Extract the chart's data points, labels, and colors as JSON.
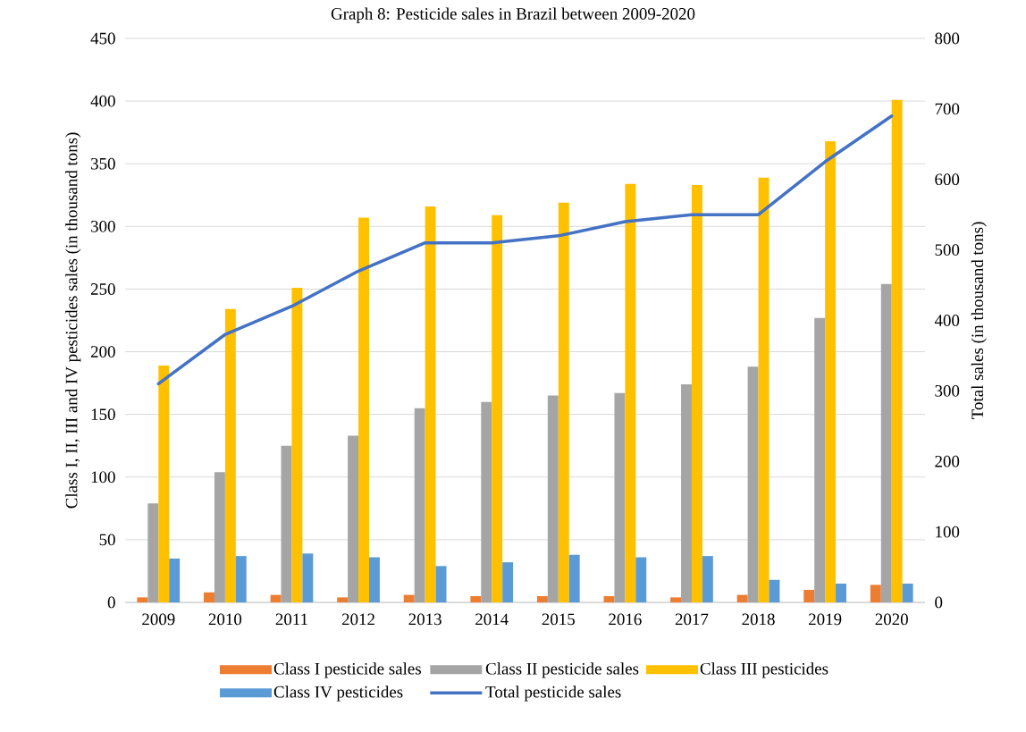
{
  "chart_data": {
    "type": "bar",
    "title": "Graph 8: Pesticide sales in Brazil between 2009-2020",
    "categories": [
      "2009",
      "2010",
      "2011",
      "2012",
      "2013",
      "2014",
      "2015",
      "2016",
      "2017",
      "2018",
      "2019",
      "2020"
    ],
    "series": [
      {
        "name": "Class I pesticide sales",
        "color": "#ed7d31",
        "values": [
          4,
          8,
          6,
          4,
          6,
          5,
          5,
          5,
          4,
          6,
          10,
          14
        ]
      },
      {
        "name": "Class II pesticide sales",
        "color": "#a5a5a5",
        "values": [
          79,
          104,
          125,
          133,
          155,
          160,
          165,
          167,
          174,
          188,
          227,
          254
        ]
      },
      {
        "name": "Class III pesticides",
        "color": "#ffc000",
        "values": [
          189,
          234,
          251,
          307,
          316,
          309,
          319,
          334,
          333,
          339,
          368,
          401
        ]
      },
      {
        "name": "Class IV pesticides",
        "color": "#5b9bd5",
        "values": [
          35,
          37,
          39,
          36,
          29,
          32,
          38,
          36,
          37,
          18,
          15,
          15
        ]
      },
      {
        "name": "Total pesticide sales",
        "color": "#4472c4",
        "type": "line",
        "axis": "y2",
        "values": [
          310,
          380,
          420,
          470,
          510,
          510,
          520,
          540,
          550,
          550,
          625,
          690
        ]
      }
    ],
    "ylabel": "Class I, II, III and IV pesticides sales (in thousand tons)",
    "y2label": "Total sales (in thousand tons)",
    "ylim": [
      0,
      450
    ],
    "yticks": [
      0,
      50,
      100,
      150,
      200,
      250,
      300,
      350,
      400,
      450
    ],
    "y2lim": [
      0,
      800
    ],
    "y2ticks": [
      0,
      100,
      200,
      300,
      400,
      500,
      600,
      700,
      800
    ],
    "grid": "y",
    "legend": "bottom",
    "marker": "none"
  }
}
